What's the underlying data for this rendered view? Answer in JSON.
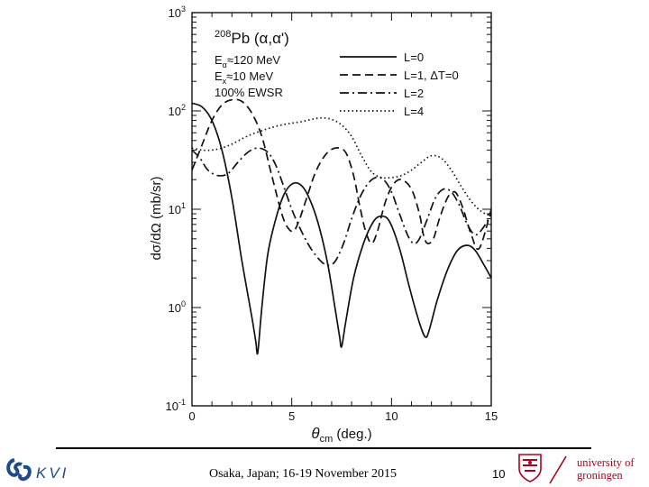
{
  "chart_data": {
    "type": "line",
    "title_lines": [
      {
        "pre": "208",
        "main": "Pb (α,α')"
      },
      {
        "pre": "",
        "main": "E",
        "sub": "α",
        "post": "≈120 MeV"
      },
      {
        "pre": "",
        "main": "E",
        "sub": "x",
        "post": "≈10 MeV"
      },
      {
        "pre": "",
        "main": "100% EWSR"
      }
    ],
    "xlabel": "θcm (deg.)",
    "ylabel": "dσ/dΩ (mb/sr)",
    "xlim": [
      0,
      15
    ],
    "ylim": [
      0.1,
      1000
    ],
    "yscale": "log",
    "xticks": [
      0,
      5,
      10,
      15
    ],
    "xtick_labels": [
      "0",
      "5",
      "10",
      "15"
    ],
    "ytick_labels": [
      {
        "base": "10",
        "exp": "3",
        "value": 1000
      },
      {
        "base": "10",
        "exp": "2",
        "value": 100
      },
      {
        "base": "10",
        "exp": "1",
        "value": 10
      },
      {
        "base": "10",
        "exp": "0",
        "value": 1
      },
      {
        "base": "10",
        "exp": "-1",
        "value": 0.1
      }
    ],
    "series": [
      {
        "name": "L=0",
        "dash": "solid",
        "x": [
          0,
          0.5,
          1.0,
          1.5,
          2.0,
          2.5,
          3.0,
          3.2,
          3.3,
          3.5,
          3.8,
          4.2,
          4.6,
          5.0,
          5.4,
          5.8,
          6.3,
          6.8,
          7.2,
          7.4,
          7.5,
          7.7,
          8.1,
          8.6,
          9.1,
          9.5,
          9.9,
          10.4,
          10.9,
          11.4,
          11.7,
          11.9,
          12.3,
          12.8,
          13.3,
          13.8,
          14.2,
          14.6,
          15.0
        ],
        "y": [
          120,
          110,
          80,
          40,
          13,
          3.0,
          0.8,
          0.45,
          0.35,
          1.0,
          3.5,
          8.0,
          14,
          18,
          18,
          14,
          7.5,
          2.8,
          0.9,
          0.5,
          0.4,
          0.7,
          2.0,
          4.5,
          7.5,
          8.5,
          7.5,
          4.0,
          1.6,
          0.7,
          0.5,
          0.6,
          1.2,
          2.4,
          3.8,
          4.3,
          3.8,
          2.8,
          2.0
        ]
      },
      {
        "name": "L=1, ΔT=0",
        "dash": "dashed",
        "x": [
          0,
          0.5,
          1.0,
          1.5,
          2.0,
          2.5,
          3.0,
          3.5,
          4.0,
          4.5,
          4.8,
          5.1,
          5.4,
          5.8,
          6.2,
          6.7,
          7.2,
          7.7,
          8.1,
          8.4,
          8.7,
          9.0,
          9.3,
          9.7,
          10.1,
          10.5,
          11.0,
          11.4,
          11.6,
          11.8,
          12.1,
          12.4,
          12.8,
          13.1,
          13.3,
          13.6,
          14.0,
          14.4,
          15.0
        ],
        "y": [
          25,
          45,
          80,
          115,
          130,
          125,
          95,
          55,
          22,
          9,
          6.5,
          6.0,
          8,
          14,
          24,
          36,
          42,
          38,
          22,
          11,
          6,
          4.5,
          6,
          12,
          18,
          20,
          16,
          9,
          5.5,
          4.5,
          5,
          8,
          13,
          15,
          14,
          10,
          5.5,
          4.0,
          10
        ]
      },
      {
        "name": "L=2",
        "dash": "dashdot",
        "x": [
          0,
          0.4,
          0.8,
          1.3,
          1.8,
          2.3,
          2.8,
          3.3,
          3.8,
          4.2,
          4.6,
          5.0,
          5.4,
          5.8,
          6.2,
          6.6,
          6.9,
          7.2,
          7.6,
          8.0,
          8.4,
          8.8,
          9.2,
          9.6,
          10.0,
          10.4,
          10.8,
          11.1,
          11.4,
          11.8,
          12.2,
          12.6,
          13.0,
          13.4,
          13.8,
          14.2,
          14.6,
          15.0
        ],
        "y": [
          40,
          33,
          25,
          22,
          23,
          30,
          38,
          42,
          38,
          28,
          17,
          10,
          6.5,
          4.5,
          3.4,
          2.8,
          2.7,
          3.0,
          4.5,
          8,
          13,
          18,
          21,
          20,
          15,
          9,
          5.5,
          4.5,
          5,
          8,
          13,
          16,
          15,
          11,
          7,
          5.5,
          6.5,
          9
        ]
      },
      {
        "name": "L=4",
        "dash": "dotted",
        "x": [
          0,
          0.5,
          1.0,
          1.5,
          2.0,
          2.5,
          3.0,
          3.5,
          4.0,
          4.5,
          5.0,
          5.5,
          6.0,
          6.5,
          7.0,
          7.5,
          8.0,
          8.5,
          9.0,
          9.5,
          10.0,
          10.5,
          11.0,
          11.5,
          12.0,
          12.5,
          13.0,
          13.5,
          14.0,
          14.5,
          15.0
        ],
        "y": [
          42,
          40,
          40,
          42,
          46,
          52,
          58,
          63,
          68,
          72,
          75,
          78,
          82,
          85,
          82,
          72,
          55,
          35,
          24,
          21,
          21,
          22,
          25,
          30,
          35,
          33,
          25,
          17,
          12,
          9.5,
          8.5
        ]
      }
    ]
  },
  "footer": {
    "text": "Osaka, Japan; 16-19 November 2015",
    "page_number": "10",
    "kvi_label": "KVI",
    "rug_line1": "university of",
    "rug_line2": "groningen"
  },
  "colors": {
    "ink": "#111111",
    "rug_red": "#b0001e",
    "kvi_blue": "#1e4a8c"
  }
}
